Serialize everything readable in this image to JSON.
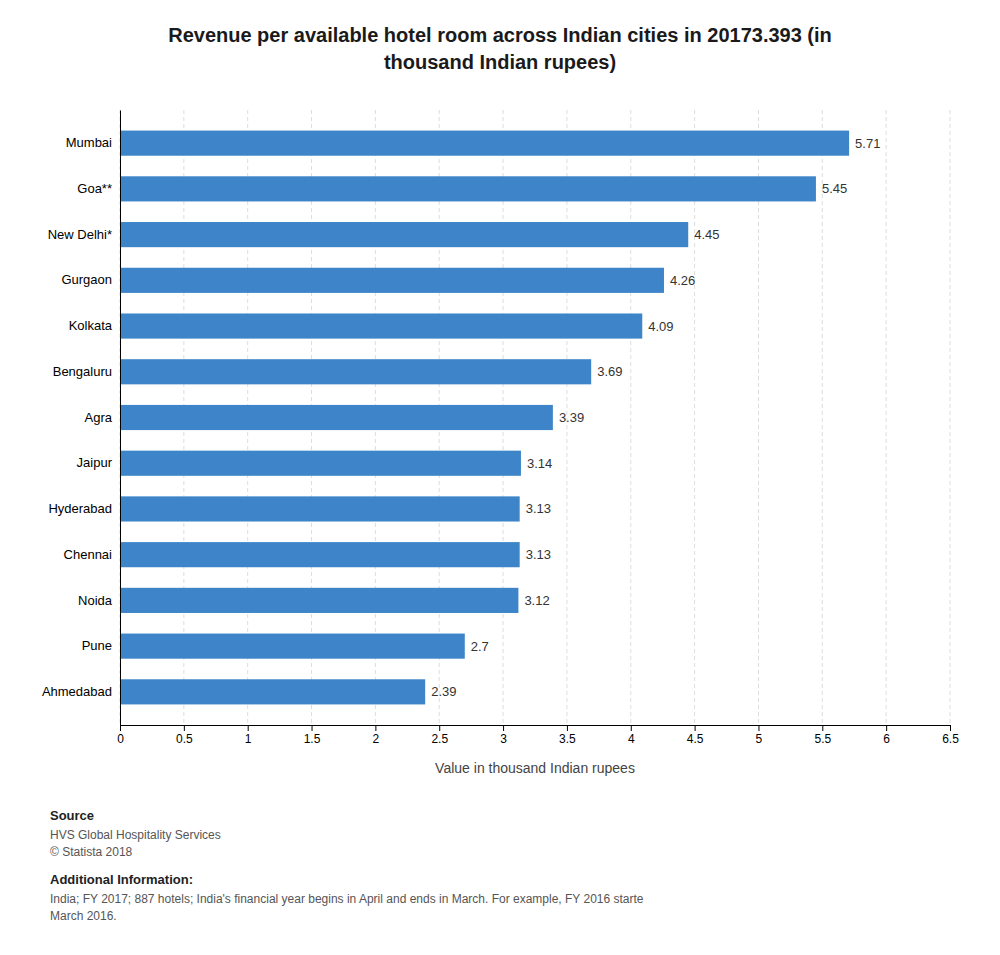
{
  "chart_data": {
    "type": "bar",
    "orientation": "horizontal",
    "title": "Revenue per available hotel room across Indian cities in 20173.393 (in\nthousand Indian rupees)",
    "categories": [
      "Mumbai",
      "Goa**",
      "New Delhi*",
      "Gurgaon",
      "Kolkata",
      "Bengaluru",
      "Agra",
      "Jaipur",
      "Hyderabad",
      "Chennai",
      "Noida",
      "Pune",
      "Ahmedabad"
    ],
    "values": [
      5.71,
      5.45,
      4.45,
      4.26,
      4.09,
      3.69,
      3.39,
      3.14,
      3.13,
      3.13,
      3.12,
      2.7,
      2.39
    ],
    "color": "#3d85c8",
    "xlabel": "Value in thousand Indian rupees",
    "xlim": [
      0,
      6.5
    ],
    "xticks": [
      0,
      0.5,
      1,
      1.5,
      2,
      2.5,
      3,
      3.5,
      4,
      4.5,
      5,
      5.5,
      6,
      6.5
    ],
    "grid": true,
    "data_labels": true,
    "annotations": [
      "Source",
      "HVS Global Hospitality Services\n© Statista 2018",
      "Additional Information:",
      "India; FY 2017; 887 hotels; India's financial year begins in April and ends in March. For example, FY 2016 starte\nMarch 2016."
    ]
  }
}
